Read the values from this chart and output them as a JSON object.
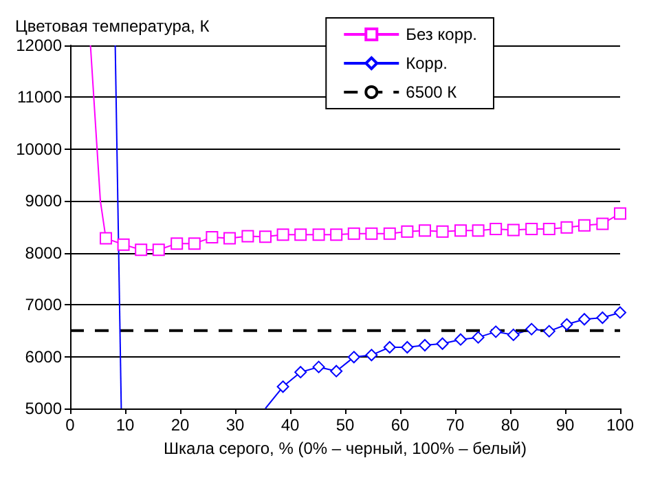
{
  "chart_data": {
    "type": "line",
    "ylabel": "Цветовая температура, К",
    "xlabel": "Шкала серого, % (0% – черный, 100% – белый)",
    "xlim": [
      0,
      100
    ],
    "xticks": [
      0,
      10,
      20,
      30,
      40,
      50,
      60,
      70,
      80,
      90,
      100
    ],
    "ylim": [
      5000,
      12000
    ],
    "yticks": [
      5000,
      6000,
      7000,
      8000,
      9000,
      10000,
      11000,
      12000
    ],
    "grid": "y",
    "legend": "top right",
    "series": [
      {
        "name": "Без корр.",
        "color": "#ff00ff",
        "marker": "square",
        "x": [
          6.5,
          9.7,
          12.9,
          16.1,
          19.4,
          22.6,
          25.8,
          29.0,
          32.3,
          35.5,
          38.7,
          41.9,
          45.2,
          48.4,
          51.6,
          54.8,
          58.1,
          61.3,
          64.5,
          67.7,
          71.0,
          74.2,
          77.4,
          80.6,
          83.9,
          87.1,
          90.3,
          93.5,
          96.8,
          100
        ],
        "values": [
          8280,
          8160,
          8060,
          8060,
          8180,
          8180,
          8300,
          8280,
          8320,
          8310,
          8350,
          8350,
          8350,
          8350,
          8370,
          8370,
          8370,
          8410,
          8430,
          8410,
          8430,
          8430,
          8460,
          8440,
          8460,
          8460,
          8490,
          8530,
          8560,
          8760
        ]
      },
      {
        "name": "Корр.",
        "color": "#0000ff",
        "marker": "diamond",
        "x": [
          38.7,
          41.9,
          45.2,
          48.4,
          51.6,
          54.8,
          58.1,
          61.3,
          64.5,
          67.7,
          71.0,
          74.2,
          77.4,
          80.6,
          83.9,
          87.1,
          90.3,
          93.5,
          96.8,
          100
        ],
        "values": [
          5420,
          5700,
          5800,
          5720,
          5990,
          6030,
          6180,
          6180,
          6220,
          6250,
          6330,
          6370,
          6480,
          6420,
          6530,
          6490,
          6620,
          6720,
          6750,
          6850
        ]
      },
      {
        "name": "6500 К",
        "color": "#000000",
        "marker": "none",
        "line_style": "dashed",
        "x": [
          0,
          100
        ],
        "values": [
          6500,
          6500
        ]
      },
      {
        "color": "#ff00ff",
        "marker": "none",
        "x": [
          3.7,
          5.5,
          6.5
        ],
        "values": [
          12000,
          9000,
          8280
        ]
      },
      {
        "color": "#0000ff",
        "marker": "none",
        "x": [
          8.2,
          9.3
        ],
        "values": [
          12000,
          5000
        ]
      },
      {
        "color": "#0000ff",
        "marker": "none",
        "x": [
          35.5,
          38.7
        ],
        "values": [
          5000,
          5420
        ]
      }
    ]
  }
}
